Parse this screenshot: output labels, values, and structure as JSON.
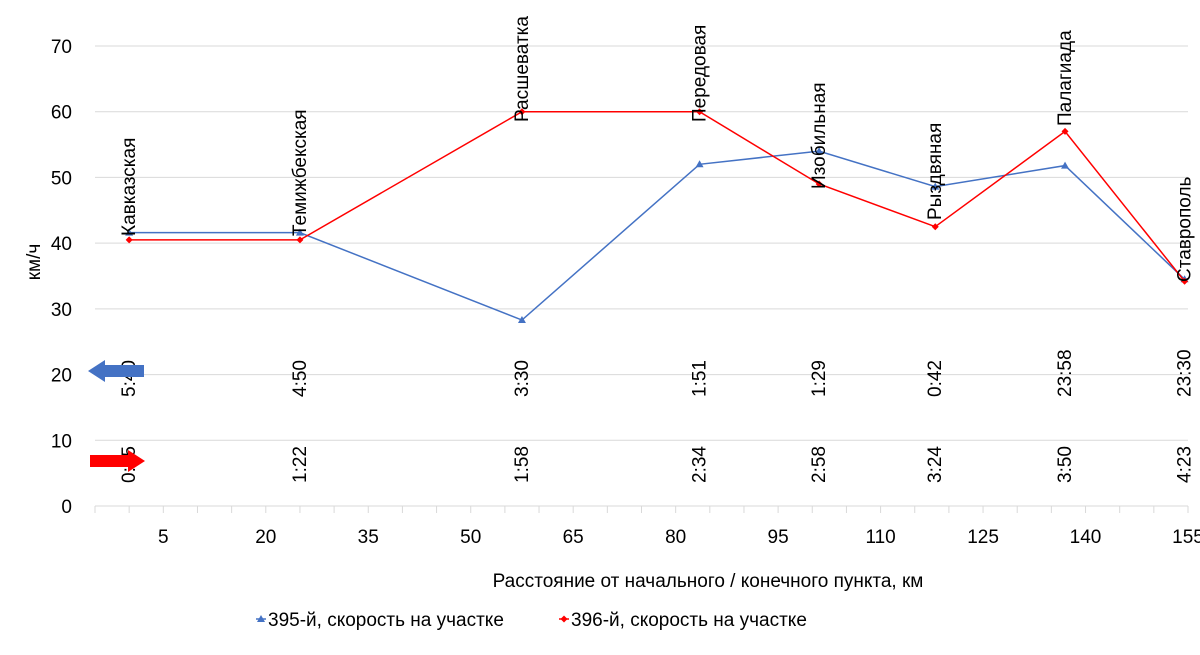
{
  "chart_data": {
    "type": "line",
    "title": "",
    "xlabel": "Расстояние от начального / конечного пункта, км",
    "ylabel": "км/ч",
    "xlim": [
      -5,
      155
    ],
    "ylim": [
      0,
      70
    ],
    "x_ticks": [
      5,
      20,
      35,
      50,
      65,
      80,
      95,
      110,
      125,
      140,
      155
    ],
    "y_ticks": [
      0,
      10,
      20,
      30,
      40,
      50,
      60,
      70
    ],
    "grid": true,
    "legend_position": "bottom",
    "stations": [
      {
        "name": "Кавказская",
        "x": 0,
        "time_395": "5:40",
        "time_396": "0:45"
      },
      {
        "name": "Темижбекская",
        "x": 25,
        "time_395": "4:50",
        "time_396": "1:22"
      },
      {
        "name": "Расшеватка",
        "x": 57.5,
        "time_395": "3:30",
        "time_396": "1:58"
      },
      {
        "name": "Передовая",
        "x": 83.5,
        "time_395": "1:51",
        "time_396": "2:34"
      },
      {
        "name": "Изобильная",
        "x": 101,
        "time_395": "1:29",
        "time_396": "2:58"
      },
      {
        "name": "Рыздвяная",
        "x": 118,
        "time_395": "0:42",
        "time_396": "3:24"
      },
      {
        "name": "Палагиада",
        "x": 137,
        "time_395": "23:58",
        "time_396": "3:50"
      },
      {
        "name": "Ставрополь",
        "x": 154.5,
        "time_395": "23:30",
        "time_396": "4:23"
      }
    ],
    "series": [
      {
        "name": "395-й, скорость на участке",
        "color": "#4472c4",
        "marker": "triangle",
        "x": [
          0,
          25,
          57.5,
          83.5,
          101,
          118,
          137,
          154.5
        ],
        "values": [
          41.6,
          41.6,
          28.3,
          52.0,
          54.0,
          48.6,
          51.8,
          34.5
        ]
      },
      {
        "name": "396-й, скорость на участке",
        "color": "#ff0000",
        "marker": "diamond",
        "x": [
          0,
          25,
          57.5,
          83.5,
          101,
          118,
          137,
          154.5
        ],
        "values": [
          40.5,
          40.5,
          60.0,
          60.0,
          49.0,
          42.5,
          57.0,
          34.2
        ]
      }
    ],
    "arrows": [
      {
        "direction": "left",
        "color": "#4472c4",
        "row": "395"
      },
      {
        "direction": "right",
        "color": "#ff0000",
        "row": "396"
      }
    ]
  }
}
